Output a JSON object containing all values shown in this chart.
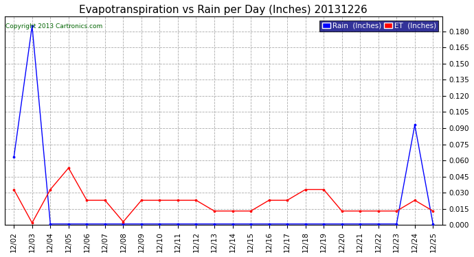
{
  "title": "Evapotranspiration vs Rain per Day (Inches) 20131226",
  "copyright": "Copyright 2013 Cartronics.com",
  "x_labels": [
    "12/02",
    "12/03",
    "12/04",
    "12/05",
    "12/06",
    "12/07",
    "12/08",
    "12/09",
    "12/10",
    "12/11",
    "12/12",
    "12/13",
    "12/14",
    "12/15",
    "12/16",
    "12/17",
    "12/18",
    "12/19",
    "12/20",
    "12/21",
    "12/22",
    "12/23",
    "12/24",
    "12/25"
  ],
  "rain_inches": [
    0.063,
    0.185,
    0.001,
    0.001,
    0.001,
    0.001,
    0.001,
    0.001,
    0.001,
    0.001,
    0.001,
    0.001,
    0.001,
    0.001,
    0.001,
    0.001,
    0.001,
    0.001,
    0.001,
    0.001,
    0.001,
    0.001,
    0.093,
    0.001
  ],
  "et_inches": [
    0.033,
    0.002,
    0.033,
    0.053,
    0.023,
    0.023,
    0.003,
    0.023,
    0.023,
    0.023,
    0.023,
    0.013,
    0.013,
    0.013,
    0.023,
    0.023,
    0.033,
    0.033,
    0.013,
    0.013,
    0.013,
    0.013,
    0.023,
    0.013
  ],
  "ylim": [
    0,
    0.1935
  ],
  "yticks": [
    0.0,
    0.015,
    0.03,
    0.045,
    0.06,
    0.075,
    0.09,
    0.105,
    0.12,
    0.135,
    0.15,
    0.165,
    0.18
  ],
  "rain_color": "#0000ff",
  "et_color": "#ff0000",
  "bg_color": "#ffffff",
  "legend_bg": "#000080",
  "title_fontsize": 11,
  "tick_fontsize": 7.5,
  "copyright_color": "#006400",
  "grid_color": "#aaaaaa",
  "grid_style": "--"
}
